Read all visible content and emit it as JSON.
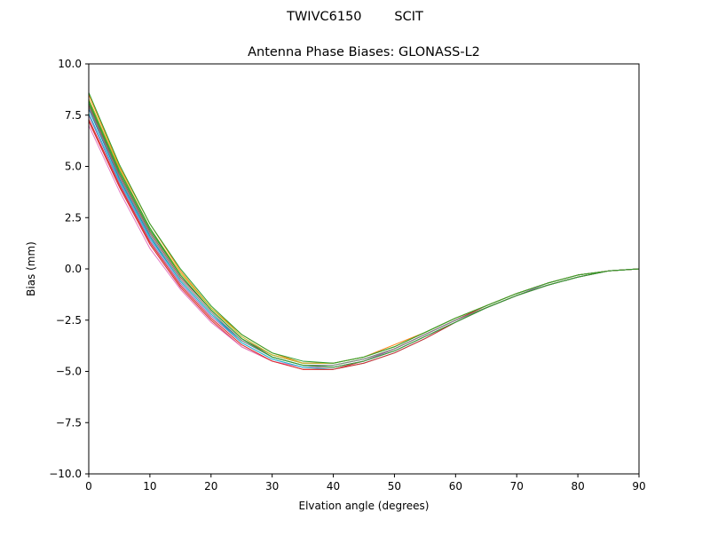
{
  "suptitle": "TWIVC6150        SCIT",
  "chart_data": {
    "type": "line",
    "title": "Antenna Phase Biases: GLONASS-L2",
    "xlabel": "Elvation angle (degrees)",
    "ylabel": "Bias (mm)",
    "xlim": [
      0,
      90
    ],
    "ylim": [
      -10,
      10
    ],
    "xticks": [
      0,
      10,
      20,
      30,
      40,
      50,
      60,
      70,
      80,
      90
    ],
    "xtick_labels": [
      "0",
      "10",
      "20",
      "30",
      "40",
      "50",
      "60",
      "70",
      "80",
      "90"
    ],
    "yticks": [
      10,
      7.5,
      5,
      2.5,
      0,
      -2.5,
      -5,
      -7.5,
      -10
    ],
    "ytick_labels": [
      "10.0",
      "7.5",
      "5.0",
      "2.5",
      "0.0",
      "−2.5",
      "−5.0",
      "−7.5",
      "−10.0"
    ],
    "grid": false,
    "legend": "none",
    "x": [
      0,
      5,
      10,
      15,
      20,
      25,
      30,
      35,
      40,
      45,
      50,
      55,
      60,
      65,
      70,
      75,
      80,
      85,
      90
    ],
    "series": [
      {
        "color": "#1f77b4",
        "values": [
          7.8,
          4.4,
          1.6,
          -0.6,
          -2.2,
          -3.5,
          -4.3,
          -4.7,
          -4.8,
          -4.5,
          -4.0,
          -3.3,
          -2.6,
          -1.9,
          -1.3,
          -0.8,
          -0.4,
          -0.1,
          0.0
        ]
      },
      {
        "color": "#ff7f0e",
        "values": [
          8.5,
          5.0,
          2.2,
          -0.1,
          -1.9,
          -3.2,
          -4.1,
          -4.6,
          -4.6,
          -4.3,
          -3.7,
          -3.1,
          -2.4,
          -1.8,
          -1.2,
          -0.7,
          -0.3,
          -0.1,
          0.0
        ]
      },
      {
        "color": "#2ca02c",
        "values": [
          8.1,
          4.7,
          1.9,
          -0.3,
          -2.0,
          -3.4,
          -4.3,
          -4.7,
          -4.7,
          -4.4,
          -3.9,
          -3.2,
          -2.5,
          -1.8,
          -1.2,
          -0.7,
          -0.3,
          -0.1,
          0.0
        ]
      },
      {
        "color": "#d62728",
        "values": [
          7.2,
          4.0,
          1.2,
          -0.9,
          -2.5,
          -3.8,
          -4.5,
          -4.9,
          -4.9,
          -4.5,
          -3.9,
          -3.2,
          -2.5,
          -1.8,
          -1.2,
          -0.7,
          -0.3,
          -0.1,
          0.0
        ]
      },
      {
        "color": "#9467bd",
        "values": [
          7.5,
          4.2,
          1.4,
          -0.7,
          -2.3,
          -3.6,
          -4.4,
          -4.8,
          -4.8,
          -4.5,
          -3.9,
          -3.2,
          -2.5,
          -1.9,
          -1.3,
          -0.7,
          -0.3,
          -0.1,
          0.0
        ]
      },
      {
        "color": "#8c564b",
        "values": [
          8.0,
          4.6,
          1.8,
          -0.4,
          -2.0,
          -3.4,
          -4.2,
          -4.6,
          -4.6,
          -4.3,
          -3.8,
          -3.1,
          -2.4,
          -1.8,
          -1.2,
          -0.7,
          -0.3,
          -0.1,
          0.0
        ]
      },
      {
        "color": "#e377c2",
        "values": [
          7.0,
          3.8,
          1.0,
          -1.0,
          -2.6,
          -3.8,
          -4.5,
          -4.8,
          -4.8,
          -4.5,
          -4.0,
          -3.3,
          -2.6,
          -1.9,
          -1.3,
          -0.8,
          -0.4,
          -0.1,
          0.0
        ]
      },
      {
        "color": "#7f7f7f",
        "values": [
          7.9,
          4.5,
          1.7,
          -0.5,
          -2.1,
          -3.5,
          -4.3,
          -4.7,
          -4.7,
          -4.4,
          -3.9,
          -3.2,
          -2.5,
          -1.9,
          -1.3,
          -0.8,
          -0.4,
          -0.1,
          0.0
        ]
      },
      {
        "color": "#bcbd22",
        "values": [
          8.3,
          4.9,
          2.0,
          -0.2,
          -1.9,
          -3.3,
          -4.2,
          -4.6,
          -4.6,
          -4.3,
          -3.8,
          -3.1,
          -2.4,
          -1.8,
          -1.2,
          -0.7,
          -0.3,
          -0.1,
          0.0
        ]
      },
      {
        "color": "#17becf",
        "values": [
          7.6,
          4.3,
          1.5,
          -0.6,
          -2.2,
          -3.6,
          -4.4,
          -4.8,
          -4.9,
          -4.6,
          -4.1,
          -3.4,
          -2.6,
          -1.9,
          -1.3,
          -0.8,
          -0.4,
          -0.1,
          0.0
        ]
      },
      {
        "color": "#2ca02c",
        "values": [
          8.6,
          5.1,
          2.2,
          0.0,
          -1.8,
          -3.2,
          -4.1,
          -4.5,
          -4.6,
          -4.3,
          -3.8,
          -3.1,
          -2.4,
          -1.8,
          -1.2,
          -0.7,
          -0.3,
          -0.1,
          0.0
        ]
      },
      {
        "color": "#d62728",
        "values": [
          7.3,
          4.1,
          1.3,
          -0.8,
          -2.4,
          -3.7,
          -4.5,
          -4.9,
          -4.9,
          -4.6,
          -4.1,
          -3.4,
          -2.6,
          -1.9,
          -1.3,
          -0.8,
          -0.4,
          -0.1,
          0.0
        ]
      },
      {
        "color": "#2ca02c",
        "values": [
          8.2,
          4.8,
          2.0,
          -0.3,
          -2.0,
          -3.4,
          -4.3,
          -4.7,
          -4.8,
          -4.5,
          -4.0,
          -3.3,
          -2.6,
          -1.9,
          -1.3,
          -0.8,
          -0.4,
          -0.1,
          0.0
        ]
      }
    ]
  }
}
